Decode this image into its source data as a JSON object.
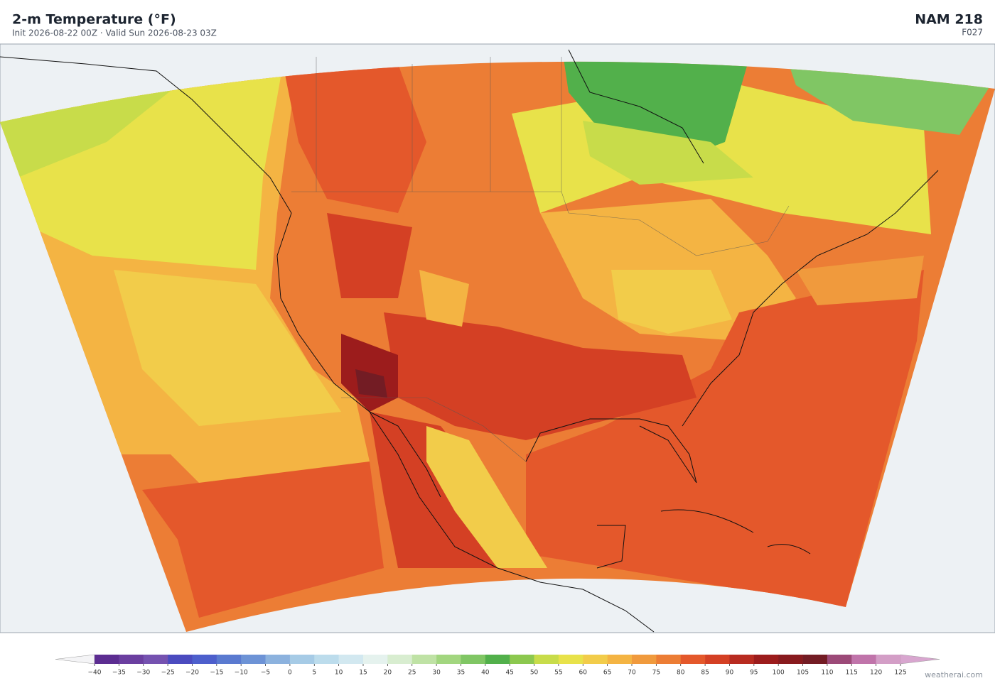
{
  "header": {
    "title": "2-m Temperature  (°F)",
    "subtitle": "Init 2026-08-22 00Z  ·  Valid Sun 2026-08-23 03Z",
    "model": "NAM  218",
    "forecast_hour": "F027"
  },
  "colorbar": {
    "ticks": [
      {
        "value": -40,
        "label": "−40"
      },
      {
        "value": -35,
        "label": "−35"
      },
      {
        "value": -30,
        "label": "−30"
      },
      {
        "value": -25,
        "label": "−25"
      },
      {
        "value": -20,
        "label": "−20"
      },
      {
        "value": -15,
        "label": "−15"
      },
      {
        "value": -10,
        "label": "−10"
      },
      {
        "value": -5,
        "label": "−5"
      },
      0,
      5,
      10,
      15,
      20,
      25,
      30,
      35,
      40,
      45,
      50,
      55,
      60,
      65,
      70,
      75,
      80,
      85,
      90,
      95,
      100,
      105,
      110,
      115,
      120,
      125
    ],
    "colors": [
      "#5c2d91",
      "#6b3fa0",
      "#7552b0",
      "#4b4bbf",
      "#4d5fcc",
      "#5a7ad0",
      "#6d93d6",
      "#8cb2de",
      "#a6cbe6",
      "#bcdcec",
      "#d2e8f0",
      "#e5f2ee",
      "#d8edd0",
      "#bfe2a5",
      "#a2d67f",
      "#80c664",
      "#52b04b",
      "#8cc84f",
      "#c8dc4a",
      "#e8e24a",
      "#f2cc4a",
      "#f4b443",
      "#f09a3d",
      "#ec7d35",
      "#e4582b",
      "#d44024",
      "#b82b20",
      "#9c1c1c",
      "#881a1e",
      "#731c24",
      "#9c4a78",
      "#c074aa",
      "#d39ec6"
    ],
    "under_color": "#f4f4f6",
    "over_color": "#d8a6cf"
  },
  "footer": {
    "credit": "weatherai.com"
  }
}
